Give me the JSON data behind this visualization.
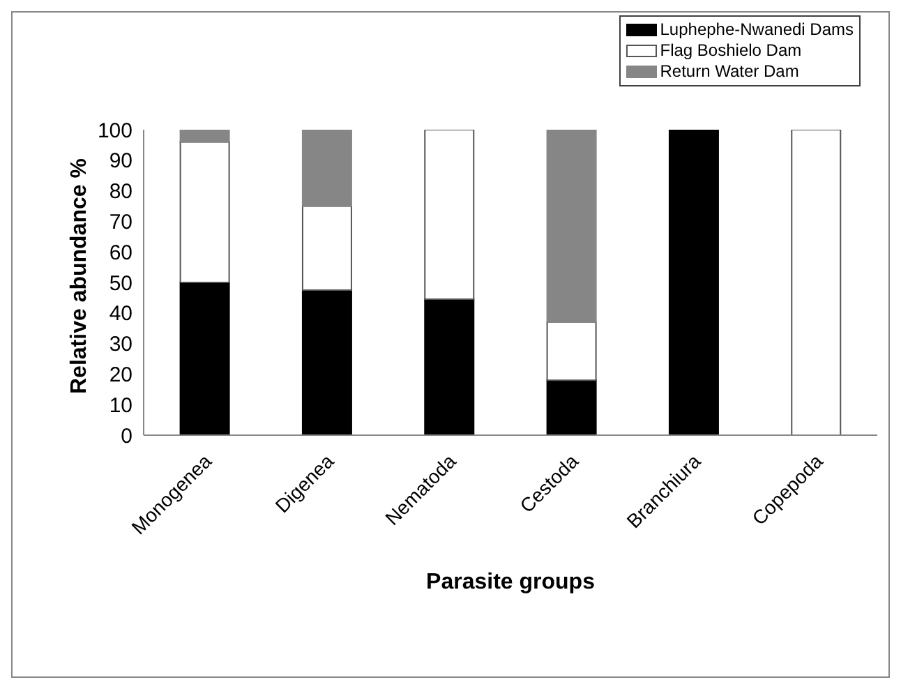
{
  "chart_data": {
    "type": "bar",
    "stacked": true,
    "xlabel": "Parasite groups",
    "ylabel": "Relative abundance %",
    "categories": [
      "Monogenea",
      "Digenea",
      "Nematoda",
      "Cestoda",
      "Branchiura",
      "Copepoda"
    ],
    "series": [
      {
        "name": "Luphephe-Nwanedi Dams",
        "color": "#000000",
        "values": [
          50,
          47.5,
          44.5,
          18,
          100,
          0
        ]
      },
      {
        "name": "Flag Boshielo Dam",
        "color": "#ffffff",
        "values": [
          46,
          27.5,
          55.5,
          19,
          0,
          100
        ]
      },
      {
        "name": "Return Water Dam",
        "color": "#868686",
        "values": [
          4,
          25,
          0,
          63,
          0,
          0
        ]
      }
    ],
    "ylim": [
      0,
      100
    ],
    "yticks": [
      0,
      10,
      20,
      30,
      40,
      50,
      60,
      70,
      80,
      90,
      100
    ],
    "grid": false,
    "legend": "top right"
  }
}
